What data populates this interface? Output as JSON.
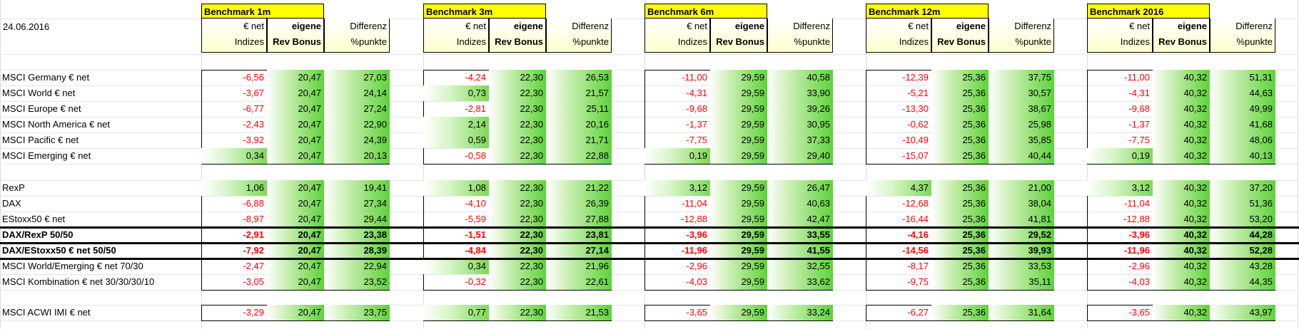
{
  "date": "24.06.2016",
  "benchmarks": [
    {
      "title": "Benchmark 1m"
    },
    {
      "title": "Benchmark 3m"
    },
    {
      "title": "Benchmark 6m"
    },
    {
      "title": "Benchmark 12m"
    },
    {
      "title": "Benchmark 2016"
    }
  ],
  "headers": {
    "c1_l1": "€ net",
    "c1_l2": "Indizes",
    "c2_l1": "eigene",
    "c2_l2": "Rev Bonus",
    "c3_l1": "Differenz",
    "c3_l2": "%punkte"
  },
  "rows": [
    {
      "label": "MSCI Germany € net",
      "bold": false,
      "vals": [
        [
          "-6,56",
          "20,47",
          "27,03"
        ],
        [
          "-4,24",
          "22,30",
          "26,53"
        ],
        [
          "-11,00",
          "29,59",
          "40,58"
        ],
        [
          "-12,39",
          "25,36",
          "37,75"
        ],
        [
          "-11,00",
          "40,32",
          "51,31"
        ]
      ]
    },
    {
      "label": "MSCI World € net",
      "bold": false,
      "vals": [
        [
          "-3,67",
          "20,47",
          "24,14"
        ],
        [
          "0,73",
          "22,30",
          "21,57"
        ],
        [
          "-4,31",
          "29,59",
          "33,90"
        ],
        [
          "-5,21",
          "25,36",
          "30,57"
        ],
        [
          "-4,31",
          "40,32",
          "44,63"
        ]
      ]
    },
    {
      "label": "MSCI Europe € net",
      "bold": false,
      "vals": [
        [
          "-6,77",
          "20,47",
          "27,24"
        ],
        [
          "-2,81",
          "22,30",
          "25,11"
        ],
        [
          "-9,68",
          "29,59",
          "39,26"
        ],
        [
          "-13,30",
          "25,36",
          "38,67"
        ],
        [
          "-9,68",
          "40,32",
          "49,99"
        ]
      ]
    },
    {
      "label": "MSCI North America € net",
      "bold": false,
      "vals": [
        [
          "-2,43",
          "20,47",
          "22,90"
        ],
        [
          "2,14",
          "22,30",
          "20,16"
        ],
        [
          "-1,37",
          "29,59",
          "30,95"
        ],
        [
          "-0,62",
          "25,36",
          "25,98"
        ],
        [
          "-1,37",
          "40,32",
          "41,68"
        ]
      ]
    },
    {
      "label": "MSCI Pacific € net",
      "bold": false,
      "vals": [
        [
          "-3,92",
          "20,47",
          "24,39"
        ],
        [
          "0,59",
          "22,30",
          "21,71"
        ],
        [
          "-7,75",
          "29,59",
          "37,33"
        ],
        [
          "-10,49",
          "25,36",
          "35,85"
        ],
        [
          "-7,75",
          "40,32",
          "48,06"
        ]
      ]
    },
    {
      "label": "MSCI Emerging € net",
      "bold": false,
      "vals": [
        [
          "0,34",
          "20,47",
          "20,13"
        ],
        [
          "-0,58",
          "22,30",
          "22,88"
        ],
        [
          "0,19",
          "29,59",
          "29,40"
        ],
        [
          "-15,07",
          "25,36",
          "40,44"
        ],
        [
          "0,19",
          "40,32",
          "40,13"
        ]
      ]
    },
    {
      "label": "RexP",
      "bold": false,
      "vals": [
        [
          "1,06",
          "20,47",
          "19,41"
        ],
        [
          "1,08",
          "22,30",
          "21,22"
        ],
        [
          "3,12",
          "29,59",
          "26,47"
        ],
        [
          "4,37",
          "25,36",
          "21,00"
        ],
        [
          "3,12",
          "40,32",
          "37,20"
        ]
      ]
    },
    {
      "label": "DAX",
      "bold": false,
      "vals": [
        [
          "-6,88",
          "20,47",
          "27,34"
        ],
        [
          "-4,10",
          "22,30",
          "26,39"
        ],
        [
          "-11,04",
          "29,59",
          "40,63"
        ],
        [
          "-12,68",
          "25,36",
          "38,04"
        ],
        [
          "-11,04",
          "40,32",
          "51,36"
        ]
      ]
    },
    {
      "label": "EStoxx50 € net",
      "bold": false,
      "vals": [
        [
          "-8,97",
          "20,47",
          "29,44"
        ],
        [
          "-5,59",
          "22,30",
          "27,88"
        ],
        [
          "-12,88",
          "29,59",
          "42,47"
        ],
        [
          "-16,44",
          "25,36",
          "41,81"
        ],
        [
          "-12,88",
          "40,32",
          "53,20"
        ]
      ]
    },
    {
      "label": "DAX/RexP 50/50",
      "bold": true,
      "vals": [
        [
          "-2,91",
          "20,47",
          "23,38"
        ],
        [
          "-1,51",
          "22,30",
          "23,81"
        ],
        [
          "-3,96",
          "29,59",
          "33,55"
        ],
        [
          "-4,16",
          "25,36",
          "29,52"
        ],
        [
          "-3,96",
          "40,32",
          "44,28"
        ]
      ]
    },
    {
      "label": "DAX/EStoxx50 € net 50/50",
      "bold": true,
      "vals": [
        [
          "-7,92",
          "20,47",
          "28,39"
        ],
        [
          "-4,84",
          "22,30",
          "27,14"
        ],
        [
          "-11,96",
          "29,59",
          "41,55"
        ],
        [
          "-14,56",
          "25,36",
          "39,93"
        ],
        [
          "-11,96",
          "40,32",
          "52,28"
        ]
      ]
    },
    {
      "label": "MSCI World/Emerging € net 70/30",
      "bold": false,
      "vals": [
        [
          "-2,47",
          "20,47",
          "22,94"
        ],
        [
          "0,34",
          "22,30",
          "21,96"
        ],
        [
          "-2,96",
          "29,59",
          "32,55"
        ],
        [
          "-8,17",
          "25,36",
          "33,53"
        ],
        [
          "-2,96",
          "40,32",
          "43,28"
        ]
      ]
    },
    {
      "label": "MSCI Kombination € net 30/30/30/10",
      "bold": false,
      "vals": [
        [
          "-3,05",
          "20,47",
          "23,52"
        ],
        [
          "-0,32",
          "22,30",
          "22,61"
        ],
        [
          "-4,03",
          "29,59",
          "33,62"
        ],
        [
          "-9,75",
          "25,36",
          "35,11"
        ],
        [
          "-4,03",
          "40,32",
          "44,35"
        ]
      ]
    },
    {
      "label": "MSCI ACWI IMI € net",
      "bold": false,
      "vals": [
        [
          "-3,29",
          "20,47",
          "23,75"
        ],
        [
          "0,77",
          "22,30",
          "21,53"
        ],
        [
          "-3,65",
          "29,59",
          "33,24"
        ],
        [
          "-6,27",
          "25,36",
          "31,64"
        ],
        [
          "-3,65",
          "40,32",
          "43,97"
        ]
      ]
    }
  ],
  "colors": {
    "negative": "#ff0000",
    "header_fill": "#ffff00",
    "positive_fill": "#5ed33a"
  }
}
